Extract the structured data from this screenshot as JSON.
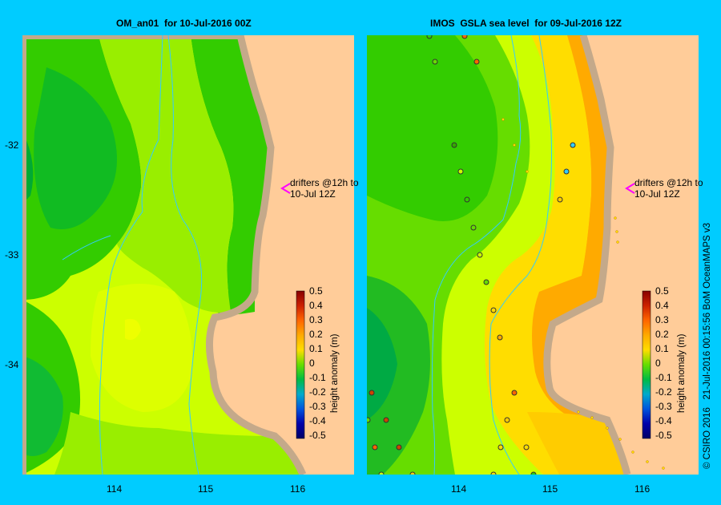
{
  "panels": [
    {
      "title": "OM_an01  for 10-Jul-2016 00Z"
    },
    {
      "title": "IMOS  GSLA sea level  for 09-Jul-2016 12Z"
    }
  ],
  "annotation": {
    "line1": "drifters @12h to",
    "line2": "10-Jul 12Z"
  },
  "x_ticks": [
    "114",
    "115",
    "116"
  ],
  "y_ticks": [
    "-32",
    "-33",
    "-34"
  ],
  "colorbar": {
    "label": "height anomaly (m)",
    "ticks": [
      "0.5",
      "0.4",
      "0.3",
      "0.2",
      "0.1",
      "0",
      "-0.1",
      "-0.2",
      "-0.3",
      "-0.4",
      "-0.5"
    ]
  },
  "credit": "© CSIRO 2016   21-Jul-2016 00:15:56 BoM OceanMAPS v3",
  "colors": {
    "background": "#00ccff",
    "land": "#ffcc99",
    "coast": "#c4a98a",
    "bathymetry": "#33ccff",
    "drifter_arrow": "#ff00ff"
  }
}
